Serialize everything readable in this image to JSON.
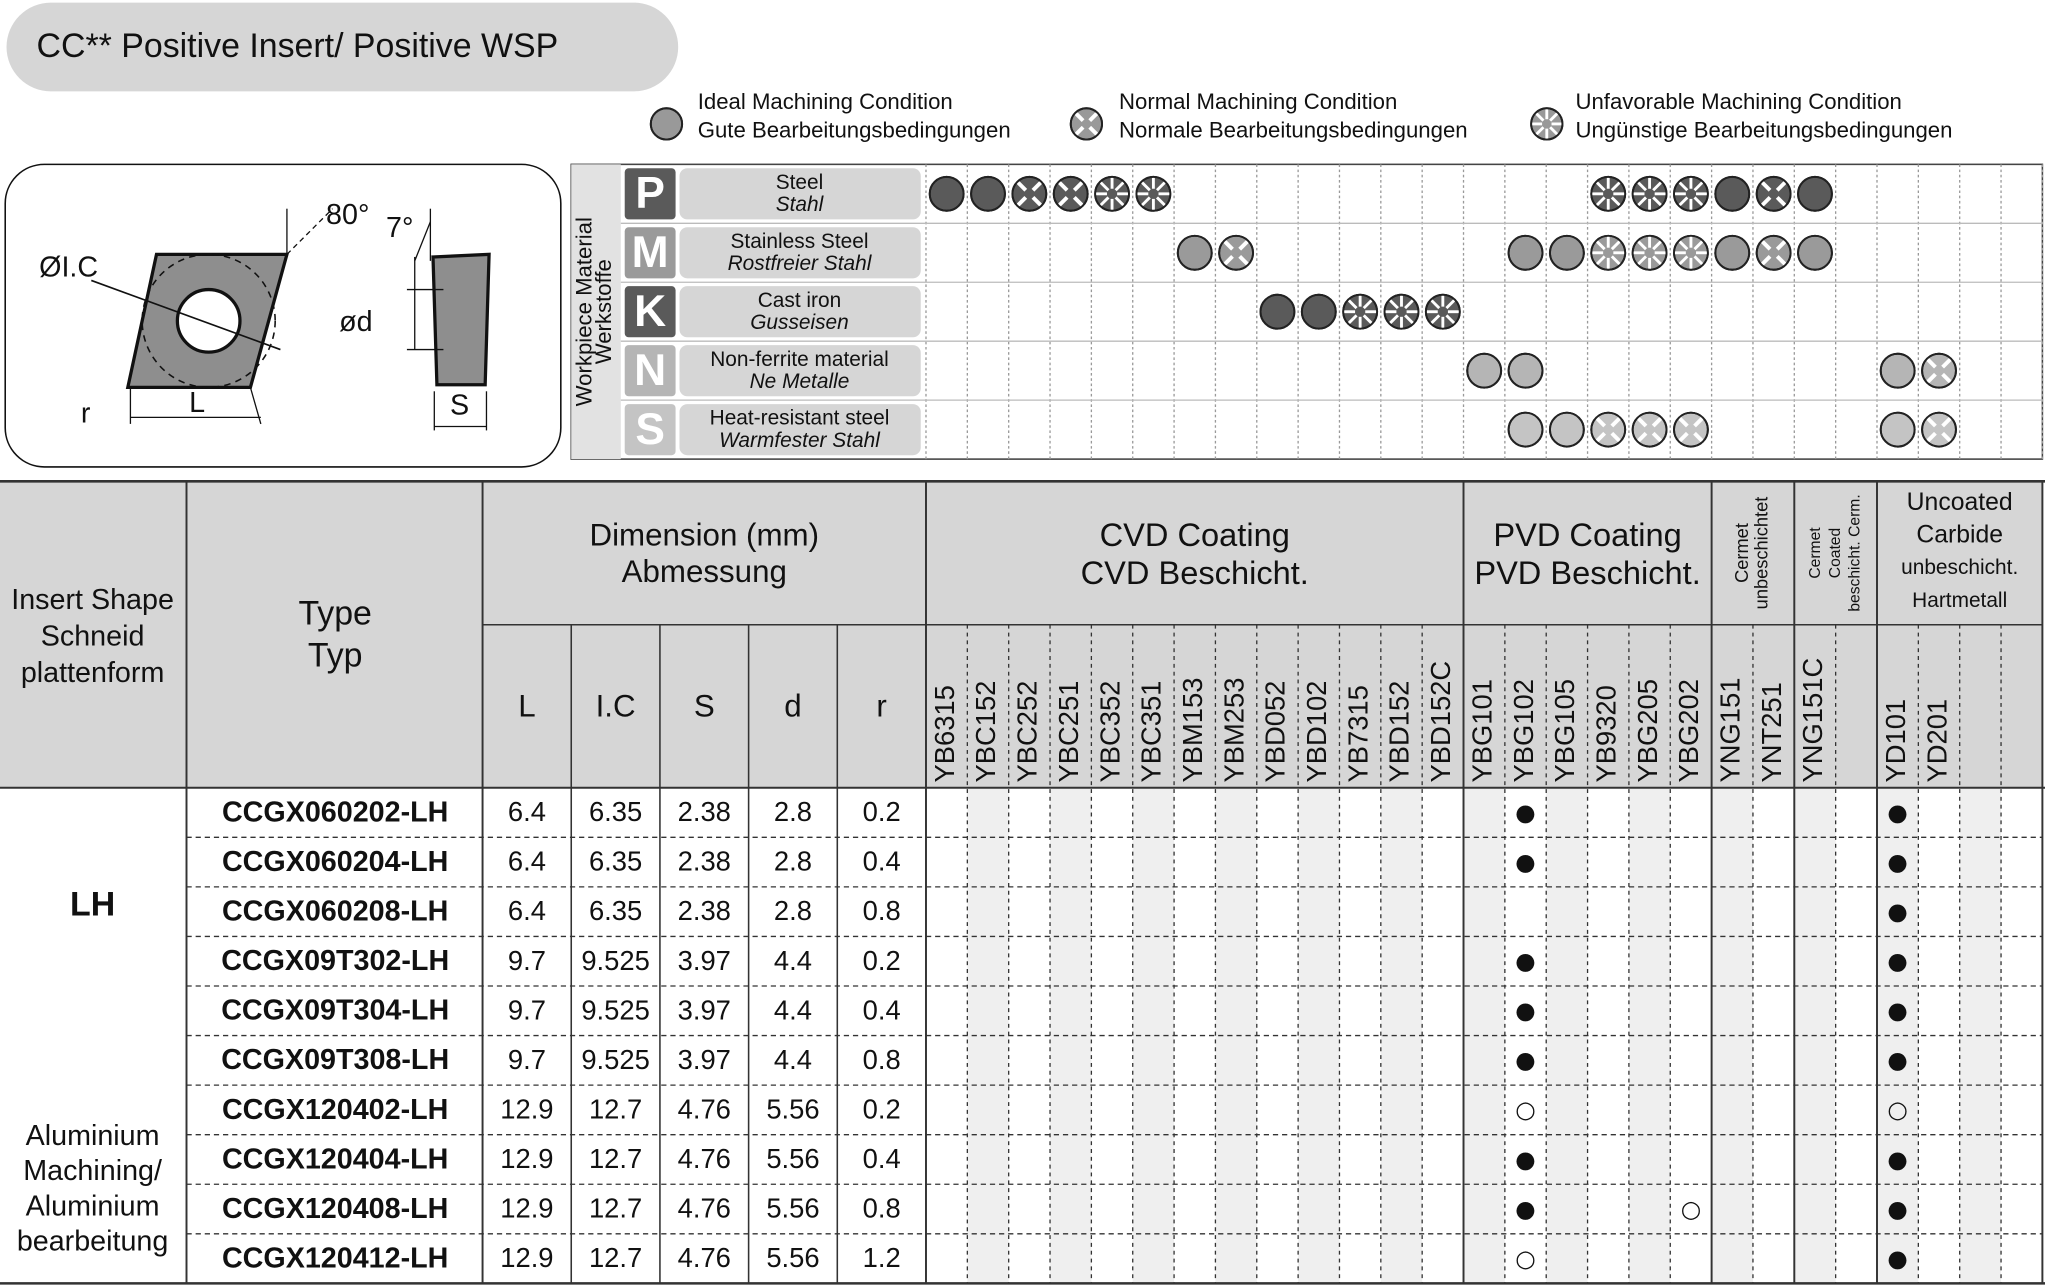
{
  "title": "CC** Positive Insert/ Positive WSP",
  "legend": [
    {
      "lines": [
        "Ideal Machining Condition",
        "Gute Bearbeitungsbedingungen"
      ]
    },
    {
      "lines": [
        "Normal Machining Condition",
        "Normale Bearbeitungsbedingungen"
      ]
    },
    {
      "lines": [
        "Unfavorable Machining Condition",
        "Ungünstige Bearbeitungsbedingungen"
      ]
    }
  ],
  "diagram": {
    "labels": [
      "ØI.C",
      "80°",
      "7°",
      "ød",
      "r",
      "L",
      "S"
    ]
  },
  "workpiece": {
    "heading": [
      "Workpiece Material",
      "Werkstoffe"
    ],
    "rows": [
      {
        "letter": "P",
        "name": "Steel",
        "name_de": "Stahl",
        "color": "#5a5a5a",
        "conditions": [
          0,
          0,
          1,
          1,
          2,
          2,
          null,
          null,
          null,
          null,
          null,
          null,
          null,
          null,
          null,
          null,
          2,
          2,
          2,
          0,
          1,
          0,
          null,
          null,
          null,
          null,
          null
        ]
      },
      {
        "letter": "M",
        "name": "Stainless Steel",
        "name_de": "Rostfreier Stahl",
        "color": "#9a9a9a",
        "conditions": [
          null,
          null,
          null,
          null,
          null,
          null,
          0,
          1,
          null,
          null,
          null,
          null,
          null,
          null,
          0,
          0,
          2,
          2,
          2,
          0,
          1,
          0,
          null,
          null,
          null,
          null,
          null
        ]
      },
      {
        "letter": "K",
        "name": "Cast iron",
        "name_de": "Gusseisen",
        "color": "#5a5a5a",
        "conditions": [
          null,
          null,
          null,
          null,
          null,
          null,
          null,
          null,
          0,
          0,
          2,
          2,
          2,
          null,
          null,
          null,
          null,
          null,
          null,
          null,
          null,
          null,
          null,
          null,
          null,
          null,
          null
        ]
      },
      {
        "letter": "N",
        "name": "Non-ferrite material",
        "name_de": "Ne Metalle",
        "color": "#b5b5b5",
        "conditions": [
          null,
          null,
          null,
          null,
          null,
          null,
          null,
          null,
          null,
          null,
          null,
          null,
          null,
          0,
          0,
          null,
          null,
          null,
          null,
          null,
          null,
          null,
          null,
          0,
          1,
          null,
          null
        ]
      },
      {
        "letter": "S",
        "name": "Heat-resistant steel",
        "name_de": "Warmfester Stahl",
        "color": "#c4c4c4",
        "conditions": [
          null,
          null,
          null,
          null,
          null,
          null,
          null,
          null,
          null,
          null,
          null,
          null,
          null,
          null,
          0,
          0,
          1,
          1,
          1,
          null,
          null,
          null,
          null,
          0,
          1,
          null,
          null
        ]
      }
    ]
  },
  "table": {
    "header": {
      "shape": [
        "Insert Shape",
        "Schneid",
        "plattenform"
      ],
      "type": [
        "Type",
        "Typ"
      ],
      "dimension": [
        "Dimension (mm)",
        "Abmessung"
      ],
      "dims": [
        "L",
        "I.C",
        "S",
        "d",
        "r"
      ],
      "groups": [
        {
          "lines": [
            "CVD Coating",
            "CVD Beschicht."
          ],
          "grades": [
            "YB6315",
            "YBC152",
            "YBC252",
            "YBC251",
            "YBC352",
            "YBC351",
            "YBM153",
            "YBM253",
            "YBD052",
            "YBD102",
            "YB7315",
            "YBD152",
            "YBD152C"
          ]
        },
        {
          "lines": [
            "PVD Coating",
            "PVD Beschicht."
          ],
          "grades": [
            "YBG101",
            "YBG102",
            "YBG105",
            "YB9320",
            "YBG205",
            "YBG202"
          ]
        },
        {
          "lines": [
            "Cermet",
            "unbeschichtet"
          ],
          "grades": [
            "YNG151",
            "YNT251"
          ]
        },
        {
          "lines": [
            "Cermet",
            "Coated",
            "beschicht. Cerm."
          ],
          "grades": [
            "YNG151C",
            null
          ]
        },
        {
          "lines": [
            "Uncoated",
            "Carbide",
            "unbeschicht.",
            "Hartmetall"
          ],
          "grades": [
            "YD101",
            "YD201",
            null,
            null
          ]
        }
      ]
    },
    "shape": {
      "code": "LH",
      "application": [
        "Aluminium",
        "Machining/",
        "Aluminium",
        "bearbeitung"
      ]
    },
    "rows": [
      {
        "type": "CCGX060202-LH",
        "dims": [
          6.4,
          6.35,
          2.38,
          2.8,
          0.2
        ],
        "marks": [
          null,
          null,
          null,
          null,
          null,
          null,
          null,
          null,
          null,
          null,
          null,
          null,
          null,
          null,
          "●",
          null,
          null,
          null,
          null,
          null,
          null,
          null,
          null,
          "●",
          null,
          null,
          null
        ]
      },
      {
        "type": "CCGX060204-LH",
        "dims": [
          6.4,
          6.35,
          2.38,
          2.8,
          0.4
        ],
        "marks": [
          null,
          null,
          null,
          null,
          null,
          null,
          null,
          null,
          null,
          null,
          null,
          null,
          null,
          null,
          "●",
          null,
          null,
          null,
          null,
          null,
          null,
          null,
          null,
          "●",
          null,
          null,
          null
        ]
      },
      {
        "type": "CCGX060208-LH",
        "dims": [
          6.4,
          6.35,
          2.38,
          2.8,
          0.8
        ],
        "marks": [
          null,
          null,
          null,
          null,
          null,
          null,
          null,
          null,
          null,
          null,
          null,
          null,
          null,
          null,
          null,
          null,
          null,
          null,
          null,
          null,
          null,
          null,
          null,
          "●",
          null,
          null,
          null
        ]
      },
      {
        "type": "CCGX09T302-LH",
        "dims": [
          9.7,
          9.525,
          3.97,
          4.4,
          0.2
        ],
        "marks": [
          null,
          null,
          null,
          null,
          null,
          null,
          null,
          null,
          null,
          null,
          null,
          null,
          null,
          null,
          "●",
          null,
          null,
          null,
          null,
          null,
          null,
          null,
          null,
          "●",
          null,
          null,
          null
        ]
      },
      {
        "type": "CCGX09T304-LH",
        "dims": [
          9.7,
          9.525,
          3.97,
          4.4,
          0.4
        ],
        "marks": [
          null,
          null,
          null,
          null,
          null,
          null,
          null,
          null,
          null,
          null,
          null,
          null,
          null,
          null,
          "●",
          null,
          null,
          null,
          null,
          null,
          null,
          null,
          null,
          "●",
          null,
          null,
          null
        ]
      },
      {
        "type": "CCGX09T308-LH",
        "dims": [
          9.7,
          9.525,
          3.97,
          4.4,
          0.8
        ],
        "marks": [
          null,
          null,
          null,
          null,
          null,
          null,
          null,
          null,
          null,
          null,
          null,
          null,
          null,
          null,
          "●",
          null,
          null,
          null,
          null,
          null,
          null,
          null,
          null,
          "●",
          null,
          null,
          null
        ]
      },
      {
        "type": "CCGX120402-LH",
        "dims": [
          12.9,
          12.7,
          4.76,
          5.56,
          0.2
        ],
        "marks": [
          null,
          null,
          null,
          null,
          null,
          null,
          null,
          null,
          null,
          null,
          null,
          null,
          null,
          null,
          "○",
          null,
          null,
          null,
          null,
          null,
          null,
          null,
          null,
          "○",
          null,
          null,
          null
        ]
      },
      {
        "type": "CCGX120404-LH",
        "dims": [
          12.9,
          12.7,
          4.76,
          5.56,
          0.4
        ],
        "marks": [
          null,
          null,
          null,
          null,
          null,
          null,
          null,
          null,
          null,
          null,
          null,
          null,
          null,
          null,
          "●",
          null,
          null,
          null,
          null,
          null,
          null,
          null,
          null,
          "●",
          null,
          null,
          null
        ]
      },
      {
        "type": "CCGX120408-LH",
        "dims": [
          12.9,
          12.7,
          4.76,
          5.56,
          0.8
        ],
        "marks": [
          null,
          null,
          null,
          null,
          null,
          null,
          null,
          null,
          null,
          null,
          null,
          null,
          null,
          null,
          "●",
          null,
          null,
          null,
          "○",
          null,
          null,
          null,
          null,
          "●",
          null,
          null,
          null
        ]
      },
      {
        "type": "CCGX120412-LH",
        "dims": [
          12.9,
          12.7,
          4.76,
          5.56,
          1.2
        ],
        "marks": [
          null,
          null,
          null,
          null,
          null,
          null,
          null,
          null,
          null,
          null,
          null,
          null,
          null,
          null,
          "○",
          null,
          null,
          null,
          null,
          null,
          null,
          null,
          null,
          "●",
          null,
          null,
          null
        ]
      }
    ]
  }
}
